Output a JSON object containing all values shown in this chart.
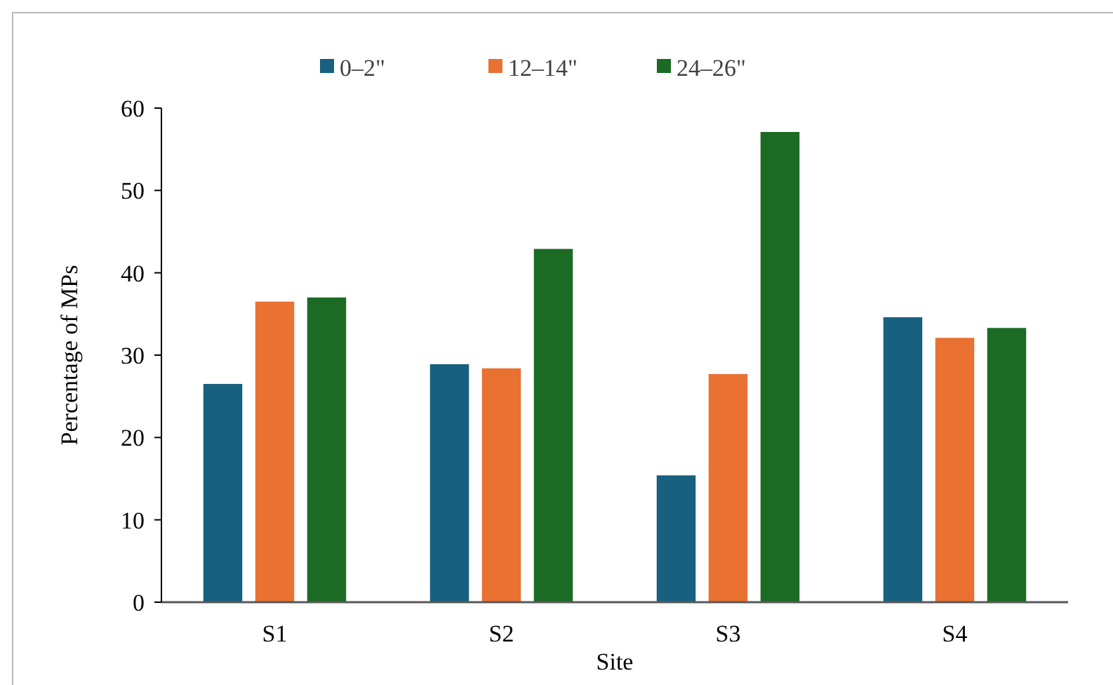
{
  "chart_data": {
    "type": "bar",
    "xlabel": "Site",
    "ylabel": "Percentage of MPs",
    "categories": [
      "S1",
      "S2",
      "S3",
      "S4"
    ],
    "series": [
      {
        "name": "0–2\"",
        "color": "#17607f",
        "values": [
          26.5,
          28.9,
          15.4,
          34.6
        ]
      },
      {
        "name": "12–14\"",
        "color": "#e97132",
        "values": [
          36.5,
          28.4,
          27.7,
          32.1
        ]
      },
      {
        "name": "24–26\"",
        "color": "#1b6b24",
        "values": [
          37.0,
          42.9,
          57.1,
          33.3
        ]
      }
    ],
    "ylim": [
      0,
      60
    ],
    "yticks": [
      0,
      10,
      20,
      30,
      40,
      50,
      60
    ],
    "grid": false,
    "legend": "top"
  }
}
